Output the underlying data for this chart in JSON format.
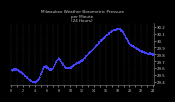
{
  "title": "Milwaukee Weather Barometric Pressure",
  "subtitle": "per Minute",
  "subtitle2": "(24 Hours)",
  "background_color": "#000000",
  "plot_bg_color": "#000000",
  "dot_color": "#4444ff",
  "grid_color": "#555555",
  "text_color": "#cccccc",
  "spine_color": "#888888",
  "ylim": [
    29.35,
    30.25
  ],
  "yticks": [
    29.4,
    29.5,
    29.6,
    29.7,
    29.8,
    29.9,
    30.0,
    30.1,
    30.2
  ],
  "ytick_labels": [
    "29.4",
    "29.5",
    "29.6",
    "29.7",
    "29.8",
    "29.9",
    "30.",
    "30.1",
    "30.2"
  ]
}
